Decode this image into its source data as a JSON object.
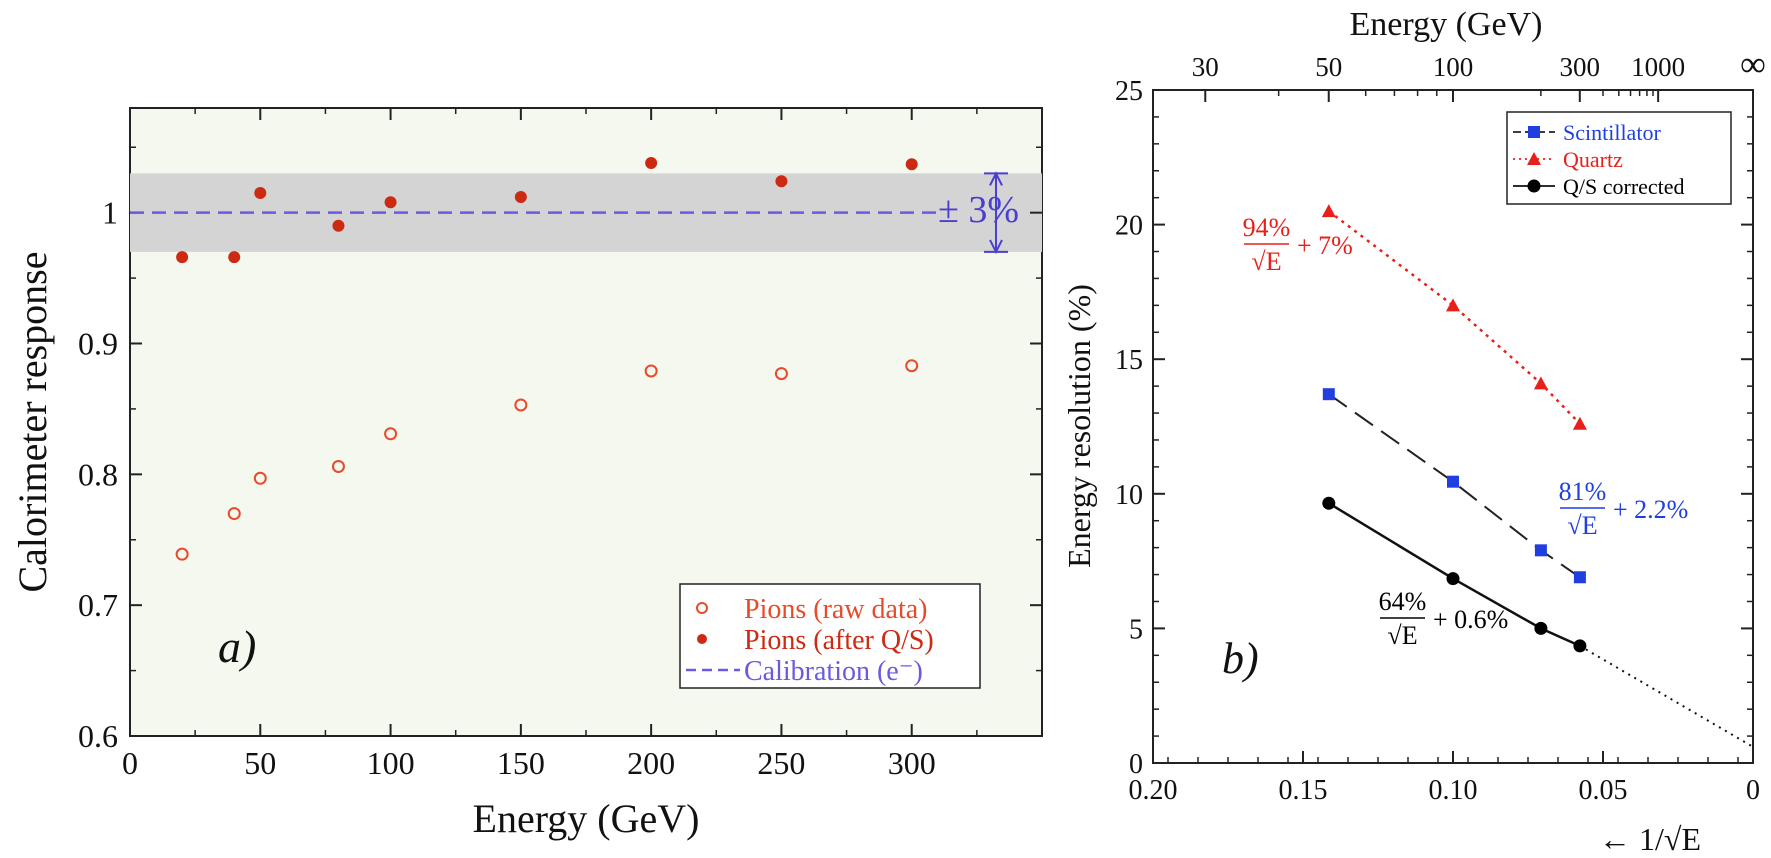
{
  "chart_data": [
    {
      "type": "scatter",
      "panel_label": "a)",
      "xlabel": "Energy (GeV)",
      "ylabel": "Calorimeter response",
      "xlim": [
        0,
        350
      ],
      "ylim": [
        0.6,
        1.08
      ],
      "x_ticks": [
        0,
        50,
        100,
        150,
        200,
        250,
        300
      ],
      "y_ticks": [
        0.6,
        0.7,
        0.8,
        0.9,
        1
      ],
      "x_tick_labels": [
        "0",
        "50",
        "100",
        "150",
        "200",
        "250",
        "300"
      ],
      "y_tick_labels": [
        "0.6",
        "0.7",
        "0.8",
        "0.9",
        "1"
      ],
      "band": {
        "center": 1.0,
        "low": 0.97,
        "high": 1.03,
        "label": "± 3%"
      },
      "legend_position": "bottom-right",
      "series": [
        {
          "name": "Pions (raw data)",
          "marker": "open-circle",
          "color": "#e84a2a",
          "x": [
            20,
            40,
            50,
            80,
            100,
            150,
            200,
            250,
            300
          ],
          "y": [
            0.739,
            0.77,
            0.797,
            0.806,
            0.831,
            0.853,
            0.879,
            0.877,
            0.883
          ]
        },
        {
          "name": "Pions (after Q/S)",
          "marker": "filled-circle",
          "color": "#cc2a12",
          "x": [
            20,
            40,
            50,
            80,
            100,
            150,
            200,
            250,
            300
          ],
          "y": [
            0.966,
            0.966,
            1.015,
            0.99,
            1.008,
            1.012,
            1.038,
            1.024,
            1.037
          ]
        },
        {
          "name": "Calibration (e⁻)",
          "marker": "dashed-line",
          "color": "#6a5adf",
          "x": [
            0,
            300
          ],
          "y": [
            1.0,
            1.0
          ]
        }
      ]
    },
    {
      "type": "line",
      "panel_label": "b)",
      "xlabel": "← 1/√E",
      "ylabel": "Energy resolution (%)",
      "top_axis_label": "Energy (GeV)",
      "top_axis_tick_labels": [
        "30",
        "50",
        "100",
        "300",
        "1000",
        "∞"
      ],
      "top_axis_tick_energies": [
        30,
        50,
        100,
        300,
        1000,
        null
      ],
      "xlim": [
        0.2,
        0
      ],
      "ylim": [
        0,
        25
      ],
      "x_ticks": [
        0.2,
        0.15,
        0.1,
        0.05,
        0
      ],
      "x_tick_labels": [
        "0.20",
        "0.15",
        "0.10",
        "0.05",
        "0"
      ],
      "y_ticks": [
        0,
        5,
        10,
        15,
        20,
        25
      ],
      "y_tick_labels": [
        "0",
        "5",
        "10",
        "15",
        "20",
        "25"
      ],
      "legend_position": "top-right",
      "series": [
        {
          "name": "Scintillator",
          "marker": "square",
          "color": "#1f3fe0",
          "line": "long-dash-black",
          "x": [
            0.1414,
            0.1,
            0.0707,
            0.0577
          ],
          "y": [
            13.7,
            10.45,
            7.9,
            6.9
          ]
        },
        {
          "name": "Quartz",
          "marker": "triangle",
          "color": "#e8201a",
          "line": "dotted-red",
          "x": [
            0.1414,
            0.1,
            0.0707,
            0.0577
          ],
          "y": [
            20.5,
            17.0,
            14.1,
            12.6
          ]
        },
        {
          "name": "Q/S corrected",
          "marker": "circle",
          "color": "#000000",
          "line": "solid-black",
          "x": [
            0.1414,
            0.1,
            0.0707,
            0.0577
          ],
          "y": [
            9.65,
            6.85,
            5.0,
            4.35
          ]
        }
      ],
      "extrapolation": {
        "style": "dotted",
        "x": [
          0.0577,
          0
        ],
        "y": [
          4.35,
          0.6
        ]
      },
      "annotations": [
        {
          "series": "Quartz",
          "numerator": "94%",
          "denominator": "√E",
          "suffix": "+ 7%",
          "color": "#e8201a"
        },
        {
          "series": "Scintillator",
          "numerator": "81%",
          "denominator": "√E",
          "suffix": "+ 2.2%",
          "color": "#1f3fe0"
        },
        {
          "series": "Q/S corrected",
          "numerator": "64%",
          "denominator": "√E",
          "suffix": "+ 0.6%",
          "color": "#000000"
        }
      ]
    }
  ]
}
